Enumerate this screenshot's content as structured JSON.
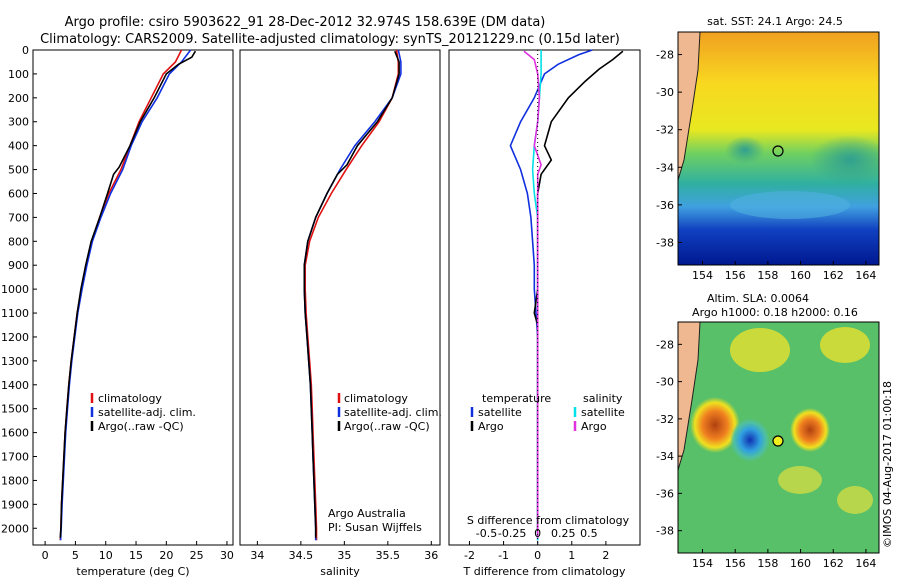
{
  "title_line1": "Argo profile: csiro 5903622_91 28-Dec-2012 32.974S 158.639E (DM data)",
  "title_line2": "Climatology: CARS2009. Satellite-adjusted climatology: synTS_20121229.nc (0.15d later)",
  "map_top_title": "sat. SST: 24.1  Argo: 24.5",
  "map_bottom_title1": "Altim. SLA: 0.0064",
  "map_bottom_title2": "Argo h1000: 0.18 h2000: 0.16",
  "watermark": "©IMOS 04-Aug-2017 01:00:18",
  "credit_line1": "Argo Australia",
  "credit_line2": "PI: Susan Wijffels",
  "colors": {
    "climatology": "#e01010",
    "satellite": "#1030e0",
    "argo": "#000000",
    "sal_satellite": "#00e0e8",
    "sal_argo": "#e030e0",
    "land": "#f0b890",
    "coast": "#202020"
  },
  "chart_data": [
    {
      "type": "line",
      "id": "temperature",
      "xlabel": "temperature (deg C)",
      "ylabel": "",
      "xlim": [
        -2,
        31
      ],
      "ylim": [
        2070,
        0
      ],
      "xticks": [
        0,
        5,
        10,
        15,
        20,
        25,
        30
      ],
      "yticks": [
        0,
        100,
        200,
        300,
        400,
        500,
        600,
        700,
        800,
        900,
        1000,
        1100,
        1200,
        1300,
        1400,
        1500,
        1600,
        1700,
        1800,
        1900,
        2000
      ],
      "legend": [
        "climatology",
        "satellite-adj. clim.",
        "Argo(..raw -QC)"
      ],
      "series": [
        {
          "name": "climatology",
          "color_key": "climatology",
          "points": [
            [
              22.5,
              0
            ],
            [
              21.5,
              50
            ],
            [
              19.5,
              100
            ],
            [
              17.5,
              200
            ],
            [
              15.5,
              300
            ],
            [
              14,
              400
            ],
            [
              12.5,
              500
            ],
            [
              10.5,
              600
            ],
            [
              9,
              700
            ],
            [
              7.7,
              800
            ],
            [
              6.8,
              900
            ],
            [
              6,
              1000
            ],
            [
              5.3,
              1100
            ],
            [
              4.8,
              1200
            ],
            [
              4.3,
              1300
            ],
            [
              3.9,
              1400
            ],
            [
              3.6,
              1500
            ],
            [
              3.3,
              1600
            ],
            [
              3.1,
              1700
            ],
            [
              2.9,
              1800
            ],
            [
              2.7,
              1900
            ],
            [
              2.6,
              2000
            ],
            [
              2.5,
              2050
            ]
          ]
        },
        {
          "name": "satellite-adj. clim.",
          "color_key": "satellite",
          "points": [
            [
              24,
              0
            ],
            [
              22.5,
              50
            ],
            [
              20.5,
              100
            ],
            [
              18.5,
              200
            ],
            [
              16,
              300
            ],
            [
              14.2,
              400
            ],
            [
              12.8,
              500
            ],
            [
              10.8,
              600
            ],
            [
              9.2,
              700
            ],
            [
              7.8,
              800
            ],
            [
              6.9,
              900
            ],
            [
              6.1,
              1000
            ],
            [
              5.4,
              1100
            ],
            [
              4.9,
              1200
            ],
            [
              4.4,
              1300
            ],
            [
              4,
              1400
            ],
            [
              3.7,
              1500
            ],
            [
              3.4,
              1600
            ],
            [
              3.2,
              1700
            ],
            [
              3,
              1800
            ],
            [
              2.8,
              1900
            ],
            [
              2.65,
              2000
            ],
            [
              2.55,
              2050
            ]
          ]
        },
        {
          "name": "Argo(..raw -QC)",
          "color_key": "argo",
          "points": [
            [
              24.8,
              5
            ],
            [
              24.2,
              30
            ],
            [
              22,
              60
            ],
            [
              20,
              100
            ],
            [
              18,
              200
            ],
            [
              15.7,
              300
            ],
            [
              14,
              400
            ],
            [
              12.2,
              490
            ],
            [
              11.3,
              520
            ],
            [
              10.3,
              600
            ],
            [
              9,
              700
            ],
            [
              7.6,
              800
            ],
            [
              6.7,
              900
            ],
            [
              5.9,
              1000
            ],
            [
              5.3,
              1100
            ],
            [
              4.8,
              1200
            ],
            [
              4.3,
              1300
            ],
            [
              3.9,
              1400
            ],
            [
              3.6,
              1500
            ],
            [
              3.3,
              1600
            ],
            [
              3.1,
              1700
            ],
            [
              2.9,
              1800
            ],
            [
              2.7,
              1900
            ],
            [
              2.6,
              2000
            ],
            [
              2.5,
              2040
            ]
          ]
        }
      ]
    },
    {
      "type": "line",
      "id": "salinity",
      "xlabel": "salinity",
      "ylabel": "",
      "xlim": [
        33.8,
        36.1
      ],
      "ylim": [
        2070,
        0
      ],
      "xticks": [
        34,
        34.5,
        35,
        35.5,
        36
      ],
      "legend": [
        "climatology",
        "satellite-adj. clim.",
        "Argo(..raw -QC)"
      ],
      "series": [
        {
          "name": "climatology",
          "color_key": "climatology",
          "points": [
            [
              35.6,
              0
            ],
            [
              35.62,
              50
            ],
            [
              35.62,
              100
            ],
            [
              35.55,
              200
            ],
            [
              35.4,
              300
            ],
            [
              35.2,
              400
            ],
            [
              35.02,
              500
            ],
            [
              34.85,
              600
            ],
            [
              34.7,
              700
            ],
            [
              34.6,
              800
            ],
            [
              34.55,
              900
            ],
            [
              34.55,
              1000
            ],
            [
              34.56,
              1100
            ],
            [
              34.58,
              1200
            ],
            [
              34.6,
              1300
            ],
            [
              34.62,
              1400
            ],
            [
              34.63,
              1500
            ],
            [
              34.64,
              1600
            ],
            [
              34.65,
              1700
            ],
            [
              34.66,
              1800
            ],
            [
              34.67,
              1900
            ],
            [
              34.68,
              2000
            ],
            [
              34.68,
              2050
            ]
          ]
        },
        {
          "name": "satellite-adj. clim.",
          "color_key": "satellite",
          "points": [
            [
              35.62,
              0
            ],
            [
              35.65,
              50
            ],
            [
              35.65,
              100
            ],
            [
              35.55,
              200
            ],
            [
              35.35,
              300
            ],
            [
              35.12,
              400
            ],
            [
              34.95,
              500
            ],
            [
              34.8,
              600
            ],
            [
              34.67,
              700
            ],
            [
              34.58,
              800
            ],
            [
              34.54,
              900
            ],
            [
              34.54,
              1000
            ],
            [
              34.55,
              1100
            ],
            [
              34.57,
              1200
            ],
            [
              34.59,
              1300
            ],
            [
              34.61,
              1400
            ],
            [
              34.62,
              1500
            ],
            [
              34.63,
              1600
            ],
            [
              34.64,
              1700
            ],
            [
              34.65,
              1800
            ],
            [
              34.66,
              1900
            ],
            [
              34.67,
              2000
            ],
            [
              34.67,
              2050
            ]
          ]
        },
        {
          "name": "Argo(..raw -QC)",
          "color_key": "argo",
          "points": [
            [
              35.58,
              5
            ],
            [
              35.63,
              50
            ],
            [
              35.63,
              100
            ],
            [
              35.55,
              200
            ],
            [
              35.38,
              300
            ],
            [
              35.15,
              400
            ],
            [
              35.03,
              480
            ],
            [
              34.92,
              520
            ],
            [
              34.8,
              600
            ],
            [
              34.67,
              700
            ],
            [
              34.58,
              800
            ],
            [
              34.54,
              900
            ],
            [
              34.54,
              1000
            ],
            [
              34.55,
              1100
            ],
            [
              34.57,
              1200
            ],
            [
              34.59,
              1300
            ],
            [
              34.61,
              1400
            ],
            [
              34.62,
              1500
            ],
            [
              34.63,
              1600
            ],
            [
              34.64,
              1700
            ],
            [
              34.65,
              1800
            ],
            [
              34.66,
              1900
            ],
            [
              34.67,
              2000
            ],
            [
              34.67,
              2040
            ]
          ]
        }
      ]
    },
    {
      "type": "line",
      "id": "difference",
      "xlabel": "T difference from climatology",
      "xlabel_top": "S difference from climatology",
      "xlim": [
        -2.6,
        3.0
      ],
      "ylim": [
        2070,
        0
      ],
      "xticks_T": [
        -2,
        -1,
        0,
        1,
        2
      ],
      "xticks_S": [
        "-0.5",
        "-0.25",
        "0",
        "0.25",
        "0.5"
      ],
      "xticks_S_pos": [
        -1.5,
        -0.75,
        0,
        0.75,
        1.5
      ],
      "legend_temperature_header": "temperature",
      "legend_salinity_header": "salinity",
      "legend_temperature": [
        "satellite",
        "Argo"
      ],
      "legend_salinity": [
        "satellite",
        "Argo"
      ],
      "series": [
        {
          "name": "T satellite",
          "color_key": "satellite",
          "points": [
            [
              1.6,
              0
            ],
            [
              1.2,
              20
            ],
            [
              0.6,
              60
            ],
            [
              0.2,
              100
            ],
            [
              -0.1,
              200
            ],
            [
              -0.5,
              300
            ],
            [
              -0.8,
              400
            ],
            [
              -0.5,
              500
            ],
            [
              -0.3,
              600
            ],
            [
              -0.2,
              700
            ],
            [
              -0.15,
              800
            ],
            [
              -0.1,
              900
            ],
            [
              -0.1,
              1000
            ],
            [
              -0.05,
              1100
            ],
            [
              0,
              1200
            ],
            [
              0,
              1300
            ],
            [
              0,
              1400
            ],
            [
              0,
              1500
            ],
            [
              0,
              1600
            ],
            [
              0,
              1700
            ],
            [
              0,
              1800
            ],
            [
              0,
              1900
            ],
            [
              0,
              2000
            ],
            [
              0,
              2050
            ]
          ]
        },
        {
          "name": "T Argo",
          "color_key": "argo",
          "points": [
            [
              2.5,
              5
            ],
            [
              2.2,
              40
            ],
            [
              1.8,
              80
            ],
            [
              1.4,
              130
            ],
            [
              0.9,
              200
            ],
            [
              0.4,
              300
            ],
            [
              0.2,
              400
            ],
            [
              0.4,
              460
            ],
            [
              0.1,
              520
            ],
            [
              0,
              600
            ],
            [
              0,
              700
            ],
            [
              0,
              800
            ],
            [
              0,
              900
            ],
            [
              0,
              1000
            ],
            [
              -0.1,
              1100
            ],
            [
              0,
              1150
            ],
            [
              0,
              1200
            ],
            [
              0,
              1300
            ],
            [
              0,
              1400
            ],
            [
              0,
              1500
            ],
            [
              0,
              1600
            ],
            [
              0,
              1700
            ],
            [
              0,
              1800
            ],
            [
              0,
              1900
            ],
            [
              0,
              2000
            ],
            [
              0,
              2040
            ]
          ]
        },
        {
          "name": "S satellite",
          "color_key": "sal_satellite",
          "points": [
            [
              0.1,
              0
            ],
            [
              0.1,
              100
            ],
            [
              0.05,
              200
            ],
            [
              0,
              300
            ],
            [
              -0.1,
              400
            ],
            [
              -0.15,
              500
            ],
            [
              -0.1,
              600
            ],
            [
              0,
              700
            ],
            [
              0,
              800
            ],
            [
              0,
              900
            ],
            [
              0,
              1000
            ],
            [
              0,
              1200
            ],
            [
              0,
              1400
            ],
            [
              0,
              1600
            ],
            [
              0,
              1800
            ],
            [
              0,
              2000
            ],
            [
              0,
              2050
            ]
          ]
        },
        {
          "name": "S Argo",
          "color_key": "sal_argo",
          "points": [
            [
              -0.4,
              5
            ],
            [
              -0.1,
              40
            ],
            [
              0,
              100
            ],
            [
              0.05,
              200
            ],
            [
              0,
              300
            ],
            [
              -0.1,
              400
            ],
            [
              0.1,
              480
            ],
            [
              0,
              520
            ],
            [
              0,
              600
            ],
            [
              0,
              700
            ],
            [
              0,
              800
            ],
            [
              0,
              1000
            ],
            [
              0,
              1200
            ],
            [
              0,
              1400
            ],
            [
              0,
              1600
            ],
            [
              0,
              1800
            ],
            [
              0,
              2000
            ],
            [
              0,
              2040
            ]
          ]
        }
      ]
    },
    {
      "type": "heatmap",
      "id": "sst_map",
      "title": "sat. SST: 24.1  Argo: 24.5",
      "xlim": [
        152.5,
        164.8
      ],
      "ylim": [
        -39.2,
        -26.8
      ],
      "xticks": [
        154,
        156,
        158,
        160,
        162,
        164
      ],
      "yticks": [
        -28,
        -30,
        -32,
        -34,
        -36,
        -38
      ],
      "argo_position": [
        158.639,
        -32.974
      ]
    },
    {
      "type": "heatmap",
      "id": "sla_map",
      "title": "Altim. SLA: 0.0064",
      "xlim": [
        152.5,
        164.8
      ],
      "ylim": [
        -39.2,
        -26.8
      ],
      "xticks": [
        154,
        156,
        158,
        160,
        162,
        164
      ],
      "yticks": [
        -28,
        -30,
        -32,
        -34,
        -36,
        -38
      ],
      "argo_position": [
        158.639,
        -32.974
      ]
    }
  ]
}
